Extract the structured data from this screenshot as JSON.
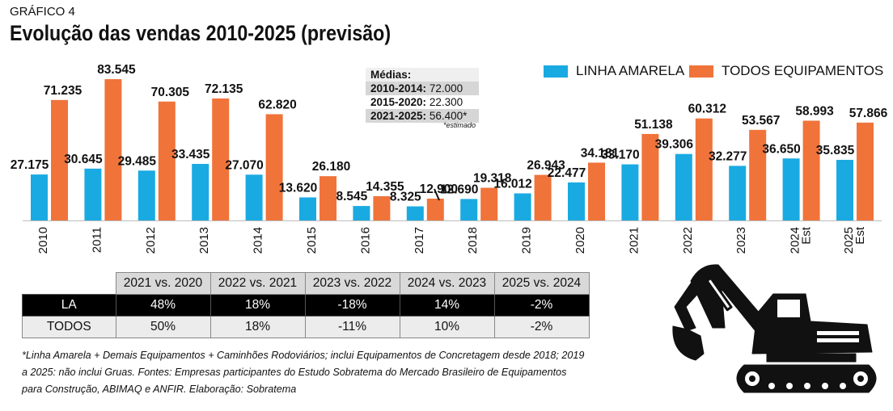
{
  "header": {
    "kicker": "GRÁFICO 4",
    "title": "Evolução das vendas 2010-2025 (previsão)"
  },
  "legend": {
    "la_label": "LINHA AMARELA",
    "todos_label": "TODOS  EQUIPAMENTOS"
  },
  "colors": {
    "la": "#1aaae2",
    "todos": "#f0733a"
  },
  "averages": {
    "heading": "Médias:",
    "rows": [
      {
        "period": "2010-2014:",
        "value": "72.000"
      },
      {
        "period": "2015-2020:",
        "value": "22.300"
      },
      {
        "period": "2021-2025:",
        "value": "56.400*"
      }
    ],
    "note": "*estimado"
  },
  "chart_data": {
    "type": "bar",
    "title": "Evolução das vendas 2010-2025 (previsão)",
    "categories": [
      "2010",
      "2011",
      "2012",
      "2013",
      "2014",
      "2015",
      "2016",
      "2017",
      "2018",
      "2019",
      "2020",
      "2021",
      "2022",
      "2023",
      "2024 Est",
      "2025 Est"
    ],
    "category_lines": [
      [
        "2010"
      ],
      [
        "2011"
      ],
      [
        "2012"
      ],
      [
        "2013"
      ],
      [
        "2014"
      ],
      [
        "2015"
      ],
      [
        "2016"
      ],
      [
        "2017"
      ],
      [
        "2018"
      ],
      [
        "2019"
      ],
      [
        "2020"
      ],
      [
        "2021"
      ],
      [
        "2022"
      ],
      [
        "2023"
      ],
      [
        "2024",
        "Est"
      ],
      [
        "2025",
        "Est"
      ]
    ],
    "series": [
      {
        "name": "LINHA AMARELA",
        "values": [
          27175,
          30645,
          29485,
          33435,
          27070,
          13620,
          8545,
          8325,
          12690,
          16012,
          22477,
          33170,
          39306,
          32277,
          36650,
          35835
        ],
        "labels": [
          "27.175",
          "30.645",
          "29.485",
          "33.435",
          "27.070",
          "13.620",
          "8.545",
          "8.325",
          "12.690",
          "16.012",
          "22.477",
          "33.170",
          "39.306",
          "32.277",
          "36.650",
          "35.835"
        ]
      },
      {
        "name": "TODOS  EQUIPAMENTOS",
        "values": [
          71235,
          83545,
          70305,
          72135,
          62820,
          26180,
          14355,
          12900,
          19318,
          26943,
          34181,
          51138,
          60312,
          53567,
          58993,
          57866
        ],
        "labels": [
          "71.235",
          "83.545",
          "70.305",
          "72.135",
          "62.820",
          "26.180",
          "14.355",
          "12.900",
          "19.318",
          "26.943",
          "34.181",
          "51.138",
          "60.312",
          "53.567",
          "58.993",
          "57.866"
        ]
      }
    ],
    "ylim": [
      0,
      85000
    ],
    "grid": false,
    "legend_position": "top-right"
  },
  "comparison_table": {
    "headers": [
      "2021 vs. 2020",
      "2022 vs. 2021",
      "2023 vs. 2022",
      "2024 vs. 2023",
      "2025 vs. 2024"
    ],
    "rows": [
      {
        "label": "LA",
        "values": [
          "48%",
          "18%",
          "-18%",
          "14%",
          "-2%"
        ]
      },
      {
        "label": "TODOS",
        "values": [
          "50%",
          "18%",
          "-11%",
          "10%",
          "-2%"
        ]
      }
    ]
  },
  "footnote": "*Linha Amarela + Demais Equipamentos + Caminhões Rodoviários; inclui Equipamentos de Concretagem desde 2018; 2019 a 2025: não inclui Gruas. Fontes: Empresas participantes do Estudo Sobratema do Mercado Brasileiro de Equipamentos para Construção, ABIMAQ e ANFIR. Elaboração: Sobratema"
}
